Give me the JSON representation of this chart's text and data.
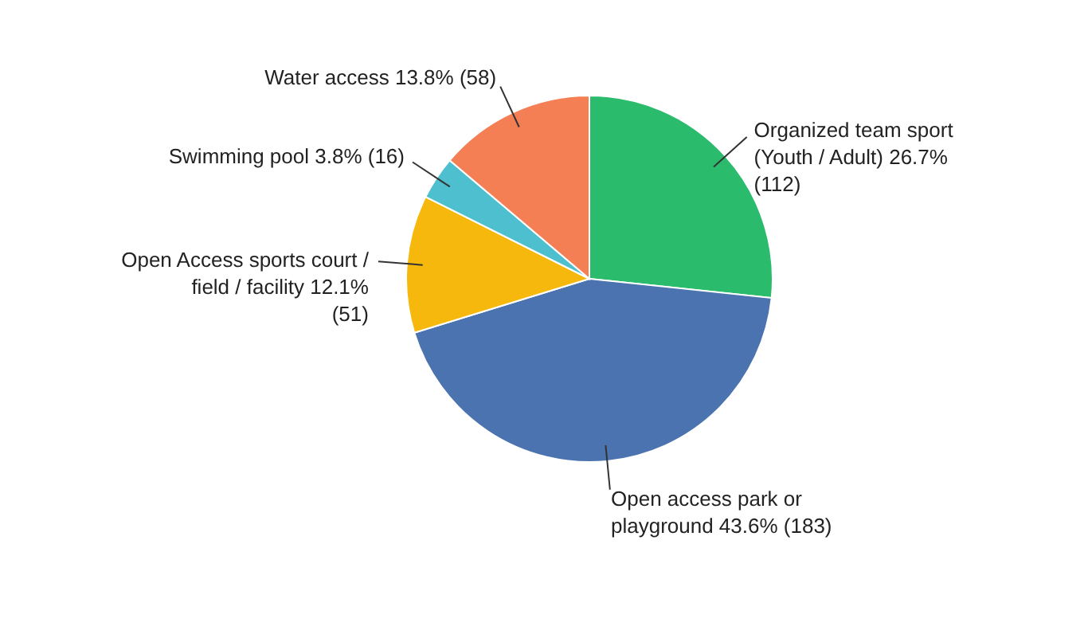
{
  "chart_data": {
    "type": "pie",
    "categories": [
      "Organized team sport (Youth / Adult)",
      "Open access park or playground",
      "Open Access sports court / field / facility",
      "Swimming pool",
      "Water access"
    ],
    "values": [
      112,
      183,
      51,
      16,
      58
    ],
    "value_labels": [
      "26.7% (112)",
      "43.6% (183)",
      "12.1% (51)",
      "3.8% (16)",
      "13.8% (58)"
    ],
    "colors": [
      "#2bbb6c",
      "#4a73b0",
      "#f6b80c",
      "#4dbfcf",
      "#f47f55"
    ]
  }
}
